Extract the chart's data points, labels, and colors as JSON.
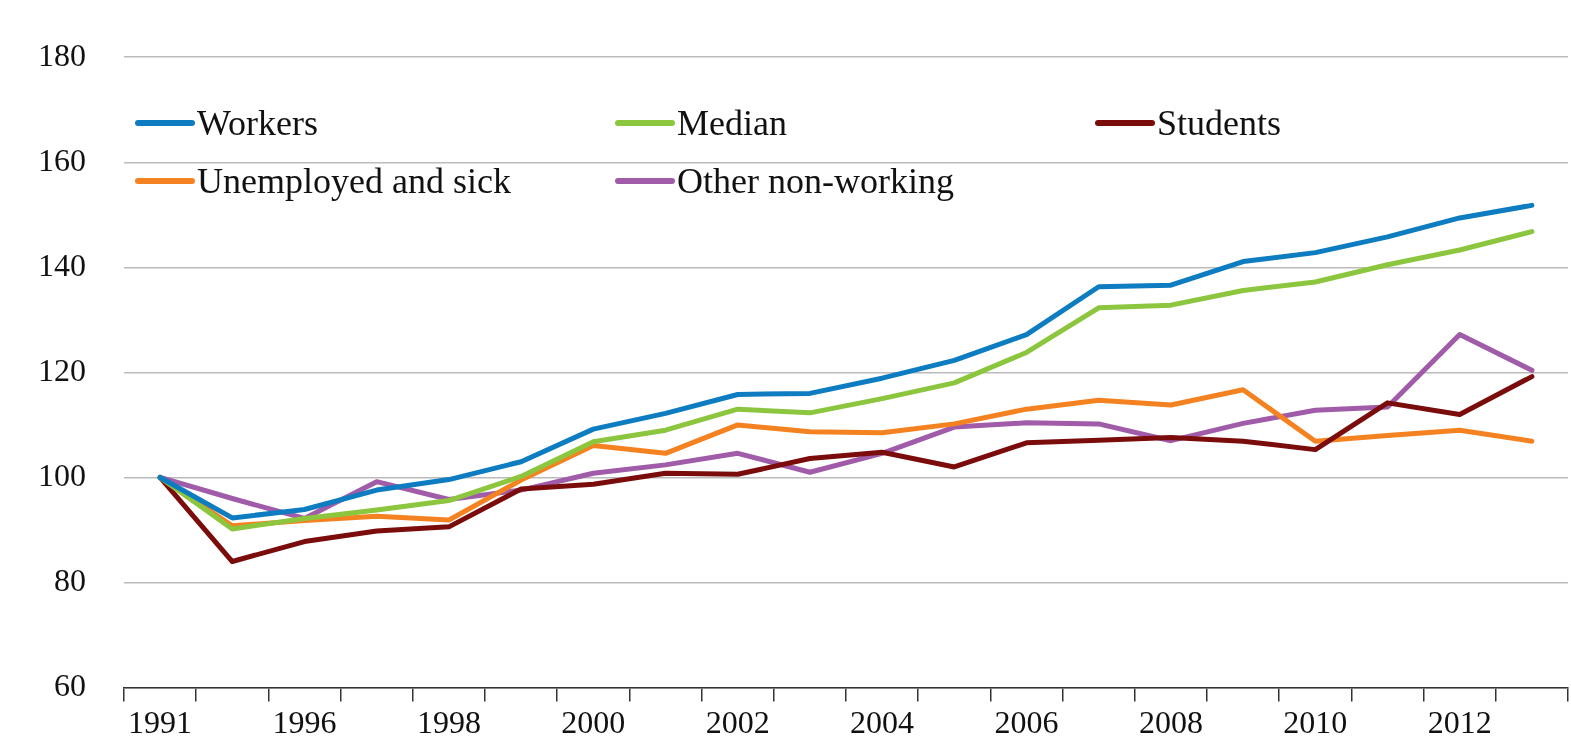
{
  "chart_data": {
    "type": "line",
    "categories": [
      "1991",
      null,
      "1996",
      null,
      "1998",
      null,
      "2000",
      null,
      "2002",
      null,
      "2004",
      null,
      "2006",
      null,
      "2008",
      null,
      "2010",
      null,
      "2012",
      null
    ],
    "ylim": [
      60,
      180
    ],
    "yticks": [
      60,
      80,
      100,
      120,
      140,
      160,
      180
    ],
    "grid": "y",
    "legend": "top",
    "marker": "none",
    "line_style": "solid",
    "series": [
      {
        "name": "Workers",
        "color": "#0e7cc0",
        "values": [
          100,
          92.3,
          93.9,
          97.6,
          99.6,
          103,
          109.2,
          112.2,
          115.8,
          116,
          118.9,
          122.3,
          127.2,
          136.3,
          136.6,
          141.1,
          142.8,
          145.8,
          149.4,
          151.8
        ]
      },
      {
        "name": "Median",
        "color": "#8cc63f",
        "values": [
          100,
          90.2,
          92.2,
          93.8,
          95.6,
          100.2,
          106.8,
          109,
          113,
          112.3,
          115,
          118,
          123.8,
          132.3,
          132.8,
          135.6,
          137.2,
          140.5,
          143.3,
          146.8
        ]
      },
      {
        "name": "Students",
        "color": "#7b0c0c",
        "values": [
          100,
          84,
          87.8,
          89.8,
          90.6,
          97.8,
          98.7,
          100.8,
          100.6,
          103.6,
          104.8,
          102,
          106.6,
          107.1,
          107.6,
          106.9,
          105.3,
          114.2,
          112,
          119.2
        ]
      },
      {
        "name": "Unemployed and sick",
        "color": "#f58220",
        "values": [
          100,
          90.8,
          91.8,
          92.6,
          91.9,
          99.5,
          106.1,
          104.6,
          110,
          108.7,
          108.5,
          110.2,
          113,
          114.7,
          113.8,
          116.7,
          106.9,
          108,
          109,
          106.9
        ]
      },
      {
        "name": "Other non-working",
        "color": "#a05ca8",
        "values": [
          100,
          96,
          92.2,
          99.2,
          95.8,
          97.6,
          100.8,
          102.4,
          104.6,
          101,
          104.6,
          109.6,
          110.4,
          110.2,
          107,
          110.3,
          112.8,
          113.4,
          127.2,
          120.4
        ]
      }
    ]
  }
}
